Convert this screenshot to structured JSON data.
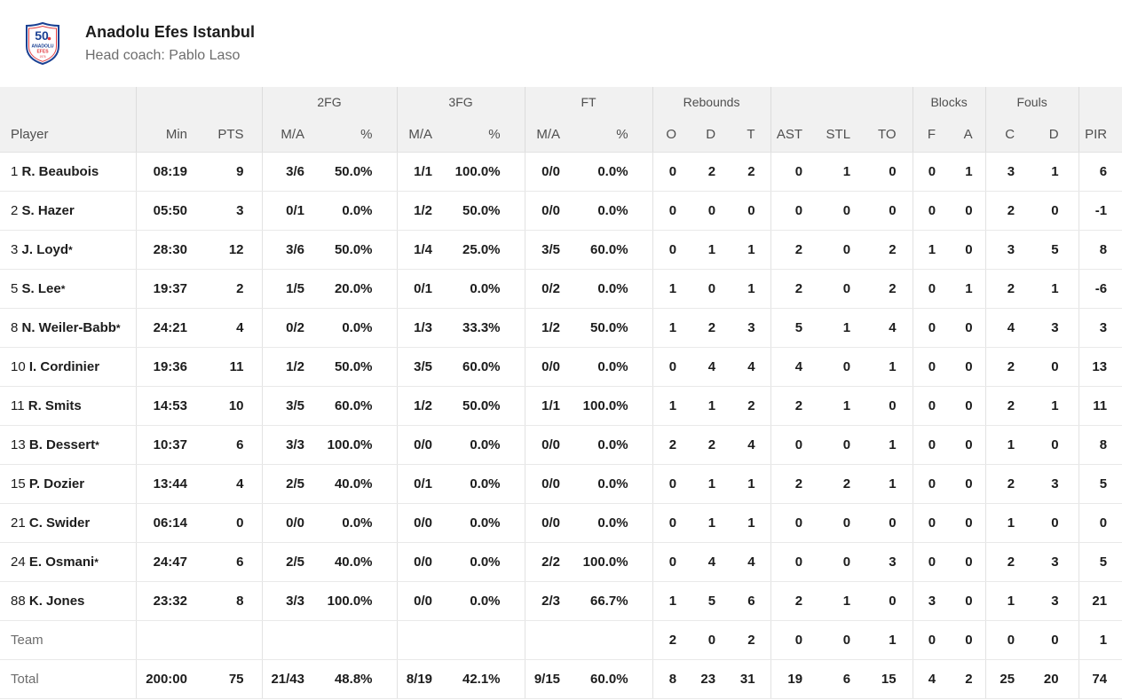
{
  "team": {
    "name": "Anadolu Efes Istanbul",
    "head_coach": "Head coach: Pablo Laso",
    "logo": {
      "anniversary": "50",
      "name_top": "ANADOLU",
      "name_bottom": "EFES",
      "year": "1976",
      "blue": "#1b4193",
      "red": "#e13b40"
    }
  },
  "colors": {
    "header_bg": "#f1f1f1",
    "header_text": "#4f4f4f",
    "border": "#e2e2e2",
    "row_border": "#e9e9e9",
    "body_text": "#1c1c1c",
    "muted_text": "#6d6d6d"
  },
  "table": {
    "group_headers": [
      {
        "label": "",
        "span": 1
      },
      {
        "label": "",
        "span": 2
      },
      {
        "label": "2FG",
        "span": 2
      },
      {
        "label": "3FG",
        "span": 2
      },
      {
        "label": "FT",
        "span": 2
      },
      {
        "label": "Rebounds",
        "span": 3
      },
      {
        "label": "",
        "span": 3
      },
      {
        "label": "Blocks",
        "span": 2
      },
      {
        "label": "Fouls",
        "span": 2
      },
      {
        "label": "",
        "span": 1
      }
    ],
    "columns": [
      "Player",
      "Min",
      "PTS",
      "M/A",
      "%",
      "M/A",
      "%",
      "M/A",
      "%",
      "O",
      "D",
      "T",
      "AST",
      "STL",
      "TO",
      "F",
      "A",
      "C",
      "D",
      "PIR"
    ],
    "players": [
      {
        "number": "1",
        "name": "R. Beaubois",
        "starter": false,
        "stats": [
          "08:19",
          "9",
          "3/6",
          "50.0%",
          "1/1",
          "100.0%",
          "0/0",
          "0.0%",
          "0",
          "2",
          "2",
          "0",
          "1",
          "0",
          "0",
          "1",
          "3",
          "1",
          "6"
        ]
      },
      {
        "number": "2",
        "name": "S. Hazer",
        "starter": false,
        "stats": [
          "05:50",
          "3",
          "0/1",
          "0.0%",
          "1/2",
          "50.0%",
          "0/0",
          "0.0%",
          "0",
          "0",
          "0",
          "0",
          "0",
          "0",
          "0",
          "0",
          "2",
          "0",
          "-1"
        ]
      },
      {
        "number": "3",
        "name": "J. Loyd",
        "starter": true,
        "stats": [
          "28:30",
          "12",
          "3/6",
          "50.0%",
          "1/4",
          "25.0%",
          "3/5",
          "60.0%",
          "0",
          "1",
          "1",
          "2",
          "0",
          "2",
          "1",
          "0",
          "3",
          "5",
          "8"
        ]
      },
      {
        "number": "5",
        "name": "S. Lee",
        "starter": true,
        "stats": [
          "19:37",
          "2",
          "1/5",
          "20.0%",
          "0/1",
          "0.0%",
          "0/2",
          "0.0%",
          "1",
          "0",
          "1",
          "2",
          "0",
          "2",
          "0",
          "1",
          "2",
          "1",
          "-6"
        ]
      },
      {
        "number": "8",
        "name": "N. Weiler-Babb",
        "starter": true,
        "stats": [
          "24:21",
          "4",
          "0/2",
          "0.0%",
          "1/3",
          "33.3%",
          "1/2",
          "50.0%",
          "1",
          "2",
          "3",
          "5",
          "1",
          "4",
          "0",
          "0",
          "4",
          "3",
          "3"
        ]
      },
      {
        "number": "10",
        "name": "I. Cordinier",
        "starter": false,
        "stats": [
          "19:36",
          "11",
          "1/2",
          "50.0%",
          "3/5",
          "60.0%",
          "0/0",
          "0.0%",
          "0",
          "4",
          "4",
          "4",
          "0",
          "1",
          "0",
          "0",
          "2",
          "0",
          "13"
        ]
      },
      {
        "number": "11",
        "name": "R. Smits",
        "starter": false,
        "stats": [
          "14:53",
          "10",
          "3/5",
          "60.0%",
          "1/2",
          "50.0%",
          "1/1",
          "100.0%",
          "1",
          "1",
          "2",
          "2",
          "1",
          "0",
          "0",
          "0",
          "2",
          "1",
          "11"
        ]
      },
      {
        "number": "13",
        "name": "B. Dessert",
        "starter": true,
        "stats": [
          "10:37",
          "6",
          "3/3",
          "100.0%",
          "0/0",
          "0.0%",
          "0/0",
          "0.0%",
          "2",
          "2",
          "4",
          "0",
          "0",
          "1",
          "0",
          "0",
          "1",
          "0",
          "8"
        ]
      },
      {
        "number": "15",
        "name": "P. Dozier",
        "starter": false,
        "stats": [
          "13:44",
          "4",
          "2/5",
          "40.0%",
          "0/1",
          "0.0%",
          "0/0",
          "0.0%",
          "0",
          "1",
          "1",
          "2",
          "2",
          "1",
          "0",
          "0",
          "2",
          "3",
          "5"
        ]
      },
      {
        "number": "21",
        "name": "C. Swider",
        "starter": false,
        "stats": [
          "06:14",
          "0",
          "0/0",
          "0.0%",
          "0/0",
          "0.0%",
          "0/0",
          "0.0%",
          "0",
          "1",
          "1",
          "0",
          "0",
          "0",
          "0",
          "0",
          "1",
          "0",
          "0"
        ]
      },
      {
        "number": "24",
        "name": "E. Osmani",
        "starter": true,
        "stats": [
          "24:47",
          "6",
          "2/5",
          "40.0%",
          "0/0",
          "0.0%",
          "2/2",
          "100.0%",
          "0",
          "4",
          "4",
          "0",
          "0",
          "3",
          "0",
          "0",
          "2",
          "3",
          "5"
        ]
      },
      {
        "number": "88",
        "name": "K. Jones",
        "starter": false,
        "stats": [
          "23:32",
          "8",
          "3/3",
          "100.0%",
          "0/0",
          "0.0%",
          "2/3",
          "66.7%",
          "1",
          "5",
          "6",
          "2",
          "1",
          "0",
          "3",
          "0",
          "1",
          "3",
          "21"
        ]
      }
    ],
    "team_row": {
      "label": "Team",
      "stats": [
        "",
        "",
        "",
        "",
        "",
        "",
        "",
        "",
        "2",
        "0",
        "2",
        "0",
        "0",
        "1",
        "0",
        "0",
        "0",
        "0",
        "1"
      ]
    },
    "total_row": {
      "label": "Total",
      "stats": [
        "200:00",
        "75",
        "21/43",
        "48.8%",
        "8/19",
        "42.1%",
        "9/15",
        "60.0%",
        "8",
        "23",
        "31",
        "19",
        "6",
        "15",
        "4",
        "2",
        "25",
        "20",
        "74"
      ]
    }
  }
}
